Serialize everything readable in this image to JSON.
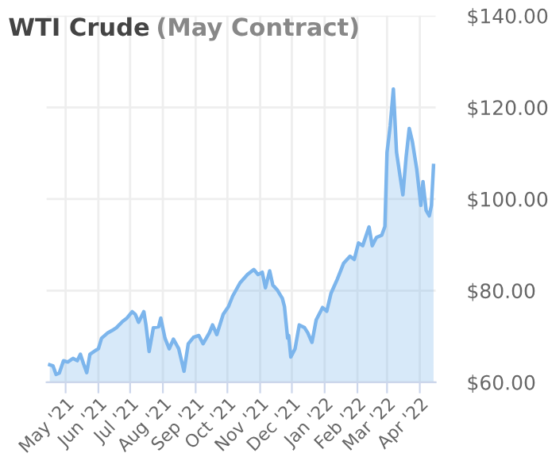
{
  "chart_data": {
    "type": "area",
    "title": "WTI Crude",
    "subtitle": "(May Contract)",
    "x": [
      "2021-04-16",
      "2021-04-19",
      "2021-04-22",
      "2021-04-25",
      "2021-04-29",
      "2021-05-03",
      "2021-05-08",
      "2021-05-12",
      "2021-05-15",
      "2021-05-18",
      "2021-05-21",
      "2021-05-24",
      "2021-05-29",
      "2021-06-01",
      "2021-06-04",
      "2021-06-10",
      "2021-06-14",
      "2021-06-18",
      "2021-06-24",
      "2021-06-28",
      "2021-07-03",
      "2021-07-06",
      "2021-07-09",
      "2021-07-14",
      "2021-07-16",
      "2021-07-19",
      "2021-07-23",
      "2021-07-28",
      "2021-07-30",
      "2021-08-03",
      "2021-08-07",
      "2021-08-11",
      "2021-08-16",
      "2021-08-21",
      "2021-08-25",
      "2021-08-30",
      "2021-09-04",
      "2021-09-08",
      "2021-09-14",
      "2021-09-17",
      "2021-09-21",
      "2021-09-27",
      "2021-10-02",
      "2021-10-06",
      "2021-10-13",
      "2021-10-20",
      "2021-10-26",
      "2021-10-30",
      "2021-11-03",
      "2021-11-06",
      "2021-11-10",
      "2021-11-13",
      "2021-11-17",
      "2021-11-22",
      "2021-11-24",
      "2021-11-27",
      "2021-11-28",
      "2021-11-30",
      "2021-12-04",
      "2021-12-08",
      "2021-12-13",
      "2021-12-16",
      "2021-12-20",
      "2021-12-24",
      "2021-12-30",
      "2022-01-03",
      "2022-01-07",
      "2022-01-13",
      "2022-01-19",
      "2022-01-25",
      "2022-01-29",
      "2022-02-02",
      "2022-02-06",
      "2022-02-12",
      "2022-02-15",
      "2022-02-19",
      "2022-02-24",
      "2022-02-27",
      "2022-03-01",
      "2022-03-04",
      "2022-03-07",
      "2022-03-10",
      "2022-03-13",
      "2022-03-16",
      "2022-03-19",
      "2022-03-22",
      "2022-03-25",
      "2022-03-29",
      "2022-04-02",
      "2022-04-04",
      "2022-04-07",
      "2022-04-10",
      "2022-04-12",
      "2022-04-14"
    ],
    "series": [
      {
        "color": "#7cb5ec",
        "values": [
          63.8,
          63.6,
          61.7,
          62.0,
          64.7,
          64.4,
          65.2,
          64.7,
          66.1,
          64.0,
          62.1,
          66.1,
          66.9,
          67.3,
          69.6,
          70.8,
          71.3,
          71.9,
          73.3,
          74.0,
          75.4,
          74.8,
          73.1,
          75.4,
          72.5,
          66.7,
          71.9,
          72.1,
          74.0,
          69.6,
          67.3,
          69.4,
          67.3,
          62.4,
          68.4,
          69.8,
          70.2,
          68.4,
          70.8,
          72.5,
          70.4,
          74.8,
          76.5,
          78.8,
          81.7,
          83.5,
          84.6,
          83.5,
          84.0,
          80.6,
          84.3,
          81.2,
          80.2,
          78.3,
          76.5,
          69.6,
          70.2,
          65.5,
          67.3,
          72.5,
          71.9,
          70.8,
          68.7,
          73.6,
          76.3,
          75.5,
          79.4,
          82.5,
          86.0,
          87.5,
          86.8,
          90.4,
          89.8,
          93.9,
          89.8,
          91.6,
          92.1,
          94.0,
          110.2,
          116.0,
          124.0,
          110.2,
          105.5,
          100.9,
          109.0,
          115.4,
          112.5,
          106.7,
          98.6,
          103.8,
          97.5,
          96.3,
          98.6,
          107.3
        ]
      }
    ],
    "xlim": [
      "2021-04-13",
      "2022-04-16"
    ],
    "ylim": [
      60,
      140
    ],
    "xticks": [
      {
        "value": "2021-05-01",
        "label": "May '21"
      },
      {
        "value": "2021-06-01",
        "label": "Jun '21"
      },
      {
        "value": "2021-07-01",
        "label": "Jul '21"
      },
      {
        "value": "2021-08-01",
        "label": "Aug '21"
      },
      {
        "value": "2021-09-01",
        "label": "Sep '21"
      },
      {
        "value": "2021-10-01",
        "label": "Oct '21"
      },
      {
        "value": "2021-11-01",
        "label": "Nov '21"
      },
      {
        "value": "2021-12-01",
        "label": "Dec '21"
      },
      {
        "value": "2022-01-01",
        "label": "Jan '22"
      },
      {
        "value": "2022-02-01",
        "label": "Feb '22"
      },
      {
        "value": "2022-03-01",
        "label": "Mar '22"
      },
      {
        "value": "2022-04-01",
        "label": "Apr '22"
      }
    ],
    "yticks": [
      {
        "value": 60,
        "label": "$60.00"
      },
      {
        "value": 80,
        "label": "$80.00"
      },
      {
        "value": 100,
        "label": "$100.00"
      },
      {
        "value": 120,
        "label": "$120.00"
      },
      {
        "value": 140,
        "label": "$140.00"
      }
    ],
    "grid": true,
    "legend": false
  }
}
